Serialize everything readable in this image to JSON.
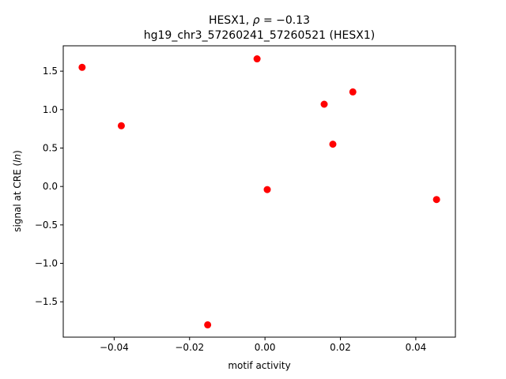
{
  "chart_data": {
    "type": "scatter",
    "title_line1": "HESX1, ρ = −0.13",
    "title_line2": "hg19_chr3_57260241_57260521 (HESX1)",
    "xlabel": "motif activity",
    "ylabel": "signal at CRE (ln)",
    "xlim": [
      -0.0535,
      0.0505
    ],
    "ylim": [
      -1.96,
      1.83
    ],
    "xticks": [
      -0.04,
      -0.02,
      0.0,
      0.02,
      0.04
    ],
    "xtick_labels": [
      "−0.04",
      "−0.02",
      "0.00",
      "0.02",
      "0.04"
    ],
    "yticks": [
      -1.5,
      -1.0,
      -0.5,
      0.0,
      0.5,
      1.0,
      1.5
    ],
    "ytick_labels": [
      "−1.5",
      "−1.0",
      "−0.5",
      "0.0",
      "0.5",
      "1.0",
      "1.5"
    ],
    "point_color": "#ff0000",
    "grid": false,
    "points": [
      {
        "x": -0.0485,
        "y": 1.55
      },
      {
        "x": -0.0381,
        "y": 0.79
      },
      {
        "x": -0.0152,
        "y": -1.8
      },
      {
        "x": -0.0021,
        "y": 1.66
      },
      {
        "x": 0.0006,
        "y": -0.04
      },
      {
        "x": 0.0157,
        "y": 1.07
      },
      {
        "x": 0.018,
        "y": 0.55
      },
      {
        "x": 0.0233,
        "y": 1.23
      },
      {
        "x": 0.0455,
        "y": -0.17
      }
    ]
  }
}
